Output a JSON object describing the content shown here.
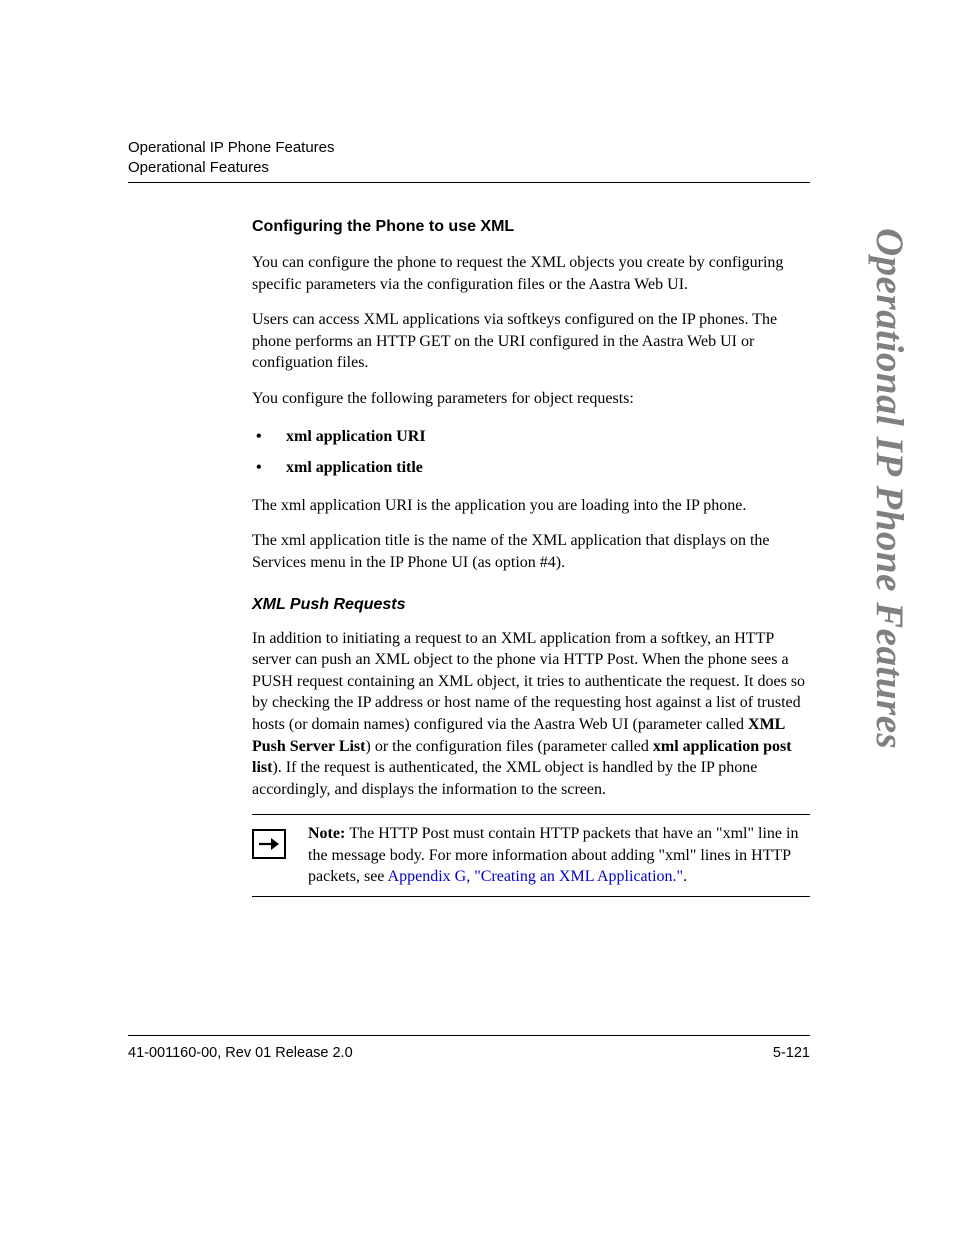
{
  "header": {
    "line1": "Operational IP Phone Features",
    "line2": "Operational Features"
  },
  "side_tab": "Operational IP Phone Features",
  "section_title": "Configuring the Phone to use XML",
  "p1": "You can configure the phone to request the XML objects you create by configuring specific parameters via the configuration files or the Aastra Web UI.",
  "p2": "Users can access XML applications via softkeys configured on the IP phones. The phone performs an HTTP GET on the URI configured in the Aastra Web UI or configuation files.",
  "p3": "You configure the following parameters for object requests:",
  "bullets": [
    "xml application URI",
    "xml application title"
  ],
  "p4": "The xml application URI is the application you are loading into the IP phone.",
  "p5": "The xml application title is the name of the XML application that displays on the Services menu in the IP Phone UI (as option #4).",
  "sub_title": "XML Push Requests",
  "p6_runs": [
    {
      "t": "In addition to initiating a request to an XML application from a softkey, an HTTP server can push an XML object to the phone via HTTP Post. When the phone sees a PUSH request containing an XML object, it tries to authenticate the request. It does so by checking the IP address or host name of the requesting host against a list of trusted hosts (or domain names) configured via the Aastra Web UI (parameter called "
    },
    {
      "t": "XML Push Server List",
      "bold": true
    },
    {
      "t": ") or the configuration files (parameter called "
    },
    {
      "t": "xml application post list",
      "bold": true
    },
    {
      "t": "). If the request is authenticated, the XML object is handled by the IP phone accordingly, and displays the information to the screen."
    }
  ],
  "note_runs": [
    {
      "t": "Note: ",
      "bold": true
    },
    {
      "t": "The HTTP Post must contain HTTP packets that have an \"xml\" line in the message body. For more information about adding \"xml\" lines in HTTP packets, see "
    },
    {
      "t": "Appendix G, \"Creating an XML Application.\"",
      "link": true
    },
    {
      "t": "."
    }
  ],
  "footer": {
    "left": "41-001160-00, Rev 01  Release 2.0",
    "right": "5-121"
  },
  "colors": {
    "text": "#000000",
    "link": "#0000cc",
    "side_tab": "#808080",
    "background": "#ffffff"
  },
  "typography": {
    "body_family": "Times New Roman",
    "heading_family": "Arial",
    "body_size_pt": 12,
    "heading_size_pt": 12,
    "side_tab_size_pt": 29
  }
}
